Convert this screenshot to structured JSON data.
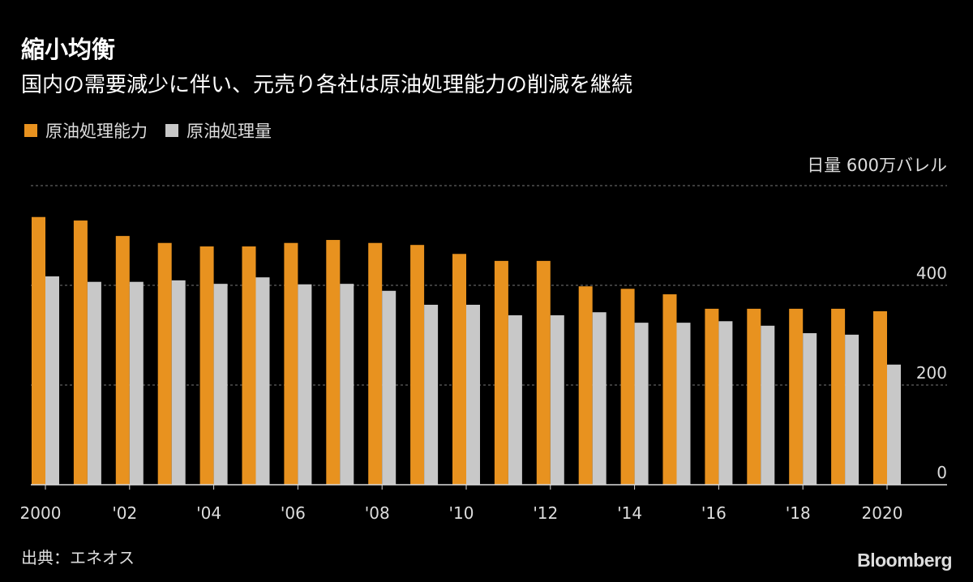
{
  "title": "縮小均衡",
  "subtitle": "国内の需要減少に伴い、元売り各社は原油処理能力の削減を継続",
  "source": "出典：エネオス",
  "logo": "Bloomberg",
  "chart_data": {
    "type": "bar",
    "unit_label": "日量 600万バレル",
    "ylim": [
      0,
      600
    ],
    "yticks": [
      0,
      200,
      400,
      600
    ],
    "ytick_labels": [
      "0",
      "200",
      "400",
      ""
    ],
    "grid": true,
    "legend_position": "top-left",
    "categories": [
      2000,
      2001,
      2002,
      2003,
      2004,
      2005,
      2006,
      2007,
      2008,
      2009,
      2010,
      2011,
      2012,
      2013,
      2014,
      2015,
      2016,
      2017,
      2018,
      2019,
      2020
    ],
    "xtick_labels": [
      {
        "year": 2000,
        "label": "2000"
      },
      {
        "year": 2002,
        "label": "'02"
      },
      {
        "year": 2004,
        "label": "'04"
      },
      {
        "year": 2006,
        "label": "'06"
      },
      {
        "year": 2008,
        "label": "'08"
      },
      {
        "year": 2010,
        "label": "'10"
      },
      {
        "year": 2012,
        "label": "'12"
      },
      {
        "year": 2014,
        "label": "'14"
      },
      {
        "year": 2016,
        "label": "'16"
      },
      {
        "year": 2018,
        "label": "'18"
      },
      {
        "year": 2020,
        "label": "2020"
      }
    ],
    "series": [
      {
        "name": "原油処理能力",
        "color": "#E8921F",
        "values": [
          537,
          530,
          499,
          485,
          478,
          478,
          485,
          491,
          485,
          481,
          463,
          449,
          449,
          398,
          393,
          382,
          353,
          353,
          353,
          353,
          348
        ]
      },
      {
        "name": "原油処理量",
        "color": "#C8C8C8",
        "values": [
          418,
          407,
          407,
          410,
          403,
          416,
          402,
          403,
          389,
          361,
          361,
          340,
          340,
          346,
          325,
          325,
          328,
          319,
          304,
          301,
          241
        ]
      }
    ]
  }
}
